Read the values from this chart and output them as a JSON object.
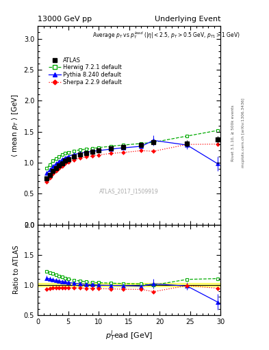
{
  "title_left": "13000 GeV pp",
  "title_right": "Underlying Event",
  "annotation": "Average $p_T$ vs $p_T^{lead}$ ($|\\eta| < 2.5$, $p_T > 0.5$ GeV, $p_{T1} > 1$ GeV)",
  "watermark": "ATLAS_2017_I1509919",
  "right_label": "mcplots.cern.ch [arXiv:1306.3436]",
  "right_label2": "Rivet 3.1.10, ≥ 500k events",
  "ylabel_main": "$\\langle$ mean $p_T$ $\\rangle$ [GeV]",
  "ylabel_ratio": "Ratio to ATLAS",
  "xlabel": "$p_T^l$ead [GeV]",
  "xlim": [
    0,
    30
  ],
  "ylim_main": [
    0,
    3.2
  ],
  "ylim_ratio": [
    0.5,
    2.0
  ],
  "yticks_main": [
    0,
    0.5,
    1.0,
    1.5,
    2.0,
    2.5,
    3.0
  ],
  "yticks_ratio": [
    0.5,
    1.0,
    1.5,
    2.0
  ],
  "atlas_x": [
    1.5,
    2.0,
    2.5,
    3.0,
    3.5,
    4.0,
    4.5,
    5.0,
    6.0,
    7.0,
    8.0,
    9.0,
    10.0,
    12.0,
    14.0,
    17.0,
    19.0,
    24.5,
    29.5
  ],
  "atlas_y": [
    0.745,
    0.805,
    0.865,
    0.915,
    0.96,
    0.995,
    1.03,
    1.06,
    1.105,
    1.135,
    1.16,
    1.18,
    1.2,
    1.23,
    1.255,
    1.29,
    1.335,
    1.31,
    1.375
  ],
  "atlas_yerr": [
    0.025,
    0.02,
    0.018,
    0.016,
    0.014,
    0.013,
    0.012,
    0.011,
    0.01,
    0.01,
    0.01,
    0.01,
    0.01,
    0.012,
    0.015,
    0.02,
    0.03,
    0.055,
    0.06
  ],
  "herwig_x": [
    1.5,
    2.0,
    2.5,
    3.0,
    3.5,
    4.0,
    4.5,
    5.0,
    6.0,
    7.0,
    8.0,
    9.0,
    10.0,
    12.0,
    14.0,
    17.0,
    19.0,
    24.5,
    29.5
  ],
  "herwig_y": [
    0.91,
    0.97,
    1.03,
    1.07,
    1.1,
    1.13,
    1.15,
    1.17,
    1.19,
    1.21,
    1.22,
    1.23,
    1.245,
    1.265,
    1.285,
    1.31,
    1.33,
    1.43,
    1.52
  ],
  "pythia_x": [
    1.5,
    2.0,
    2.5,
    3.0,
    3.5,
    4.0,
    4.5,
    5.0,
    6.0,
    7.0,
    8.0,
    9.0,
    10.0,
    12.0,
    14.0,
    17.0,
    19.0,
    24.5,
    29.5
  ],
  "pythia_y": [
    0.83,
    0.885,
    0.94,
    0.985,
    1.02,
    1.055,
    1.08,
    1.105,
    1.135,
    1.155,
    1.17,
    1.185,
    1.195,
    1.22,
    1.24,
    1.265,
    1.36,
    1.285,
    0.985
  ],
  "pythia_yerr_lo": [
    0.03,
    0.025,
    0.02,
    0.018,
    0.016,
    0.014,
    0.013,
    0.012,
    0.01,
    0.01,
    0.01,
    0.01,
    0.01,
    0.012,
    0.015,
    0.025,
    0.08,
    0.06,
    0.12
  ],
  "pythia_yerr_hi": [
    0.03,
    0.025,
    0.02,
    0.018,
    0.016,
    0.014,
    0.013,
    0.012,
    0.01,
    0.01,
    0.01,
    0.01,
    0.01,
    0.012,
    0.015,
    0.025,
    0.08,
    0.06,
    0.12
  ],
  "sherpa_x": [
    1.5,
    2.0,
    2.5,
    3.0,
    3.5,
    4.0,
    4.5,
    5.0,
    6.0,
    7.0,
    8.0,
    9.0,
    10.0,
    12.0,
    14.0,
    17.0,
    19.0,
    24.5,
    29.5
  ],
  "sherpa_y": [
    0.695,
    0.76,
    0.82,
    0.87,
    0.91,
    0.95,
    0.985,
    1.01,
    1.05,
    1.075,
    1.095,
    1.11,
    1.125,
    1.15,
    1.165,
    1.195,
    1.185,
    1.295,
    1.3
  ],
  "atlas_color": "#000000",
  "herwig_color": "#00aa00",
  "pythia_color": "#0000ff",
  "sherpa_color": "#ff0000",
  "herwig_ratio": [
    1.22,
    1.2,
    1.19,
    1.17,
    1.145,
    1.135,
    1.117,
    1.104,
    1.077,
    1.066,
    1.052,
    1.042,
    1.038,
    1.029,
    1.024,
    1.016,
    0.997,
    1.092,
    1.105
  ],
  "pythia_ratio": [
    1.115,
    1.099,
    1.086,
    1.077,
    1.063,
    1.06,
    1.049,
    1.042,
    1.027,
    1.018,
    1.009,
    1.004,
    0.996,
    0.992,
    0.988,
    0.98,
    1.019,
    0.981,
    0.716
  ],
  "pythia_ratio_err_lo": [
    0.04,
    0.035,
    0.025,
    0.022,
    0.02,
    0.018,
    0.015,
    0.014,
    0.012,
    0.011,
    0.011,
    0.011,
    0.011,
    0.013,
    0.016,
    0.027,
    0.082,
    0.065,
    0.13
  ],
  "pythia_ratio_err_hi": [
    0.04,
    0.035,
    0.025,
    0.022,
    0.02,
    0.018,
    0.015,
    0.014,
    0.012,
    0.011,
    0.011,
    0.011,
    0.011,
    0.013,
    0.016,
    0.027,
    0.082,
    0.065,
    0.13
  ],
  "sherpa_ratio": [
    0.934,
    0.944,
    0.948,
    0.951,
    0.948,
    0.955,
    0.956,
    0.953,
    0.95,
    0.947,
    0.944,
    0.941,
    0.938,
    0.935,
    0.928,
    0.926,
    0.888,
    0.989,
    0.945
  ],
  "atlas_band_color": "#ffff00",
  "atlas_band_alpha": 0.5,
  "atlas_band_ratio_lo": 0.97,
  "atlas_band_ratio_hi": 1.03
}
